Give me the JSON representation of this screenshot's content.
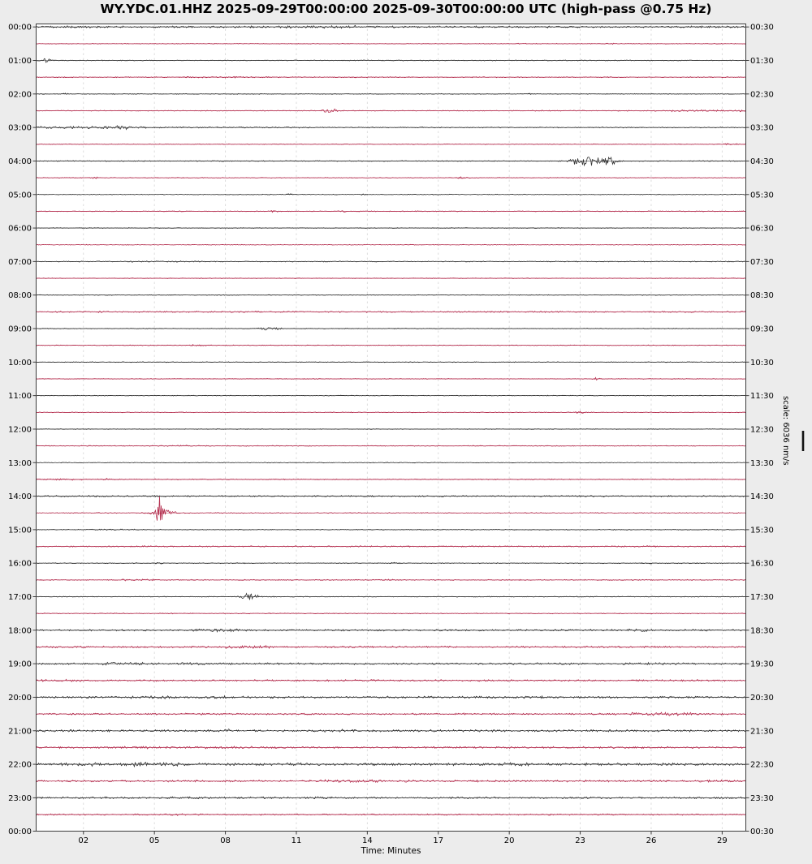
{
  "title": "WY.YDC.01.HHZ 2025-09-29T00:00:00 2025-09-30T00:00:00 UTC (high-pass @0.75 Hz)",
  "xlabel": "Time: Minutes",
  "scale_label": "scale: 6036 nm/s",
  "axis_bottom_left_label": "00:00",
  "axis_bottom_right_label": "00:30",
  "colors": {
    "trace_black": "#2a2a2a",
    "trace_red": "#b12648",
    "grid": "#d9d9d9",
    "frame": "#3c3c3c",
    "figure_bg": "#ececec",
    "plot_bg": "#ffffff",
    "label": "#000000"
  },
  "chart_data": {
    "type": "line",
    "subtype": "helicorder-dayplot",
    "station": "WY.YDC.01.HHZ",
    "start": "2025-09-29T00:00:00",
    "end": "2025-09-30T00:00:00",
    "timezone": "UTC",
    "filter": "high-pass @0.75 Hz",
    "scale": "6036 nm/s",
    "row_interval_minutes": 30,
    "xlabel": "Time: Minutes",
    "x_ticks_minutes": [
      2,
      5,
      8,
      11,
      14,
      17,
      20,
      23,
      26,
      29
    ],
    "x_tick_labels": [
      "02",
      "05",
      "08",
      "11",
      "14",
      "17",
      "20",
      "23",
      "26",
      "29"
    ],
    "xlim_minutes": [
      0,
      30
    ],
    "grid": "vertical-dashed",
    "legend": "none",
    "left_time_labels": [
      "00:00",
      "01:00",
      "02:00",
      "03:00",
      "04:00",
      "05:00",
      "06:00",
      "07:00",
      "08:00",
      "09:00",
      "10:00",
      "11:00",
      "12:00",
      "13:00",
      "14:00",
      "15:00",
      "16:00",
      "17:00",
      "18:00",
      "19:00",
      "20:00",
      "21:00",
      "22:00",
      "23:00",
      "00:00"
    ],
    "right_time_labels": [
      "00:30",
      "01:30",
      "02:30",
      "03:30",
      "04:30",
      "05:30",
      "06:30",
      "07:30",
      "08:30",
      "09:30",
      "10:30",
      "11:30",
      "12:30",
      "13:30",
      "14:30",
      "15:30",
      "16:30",
      "17:30",
      "18:30",
      "19:30",
      "20:30",
      "21:30",
      "22:30",
      "23:30",
      "00:30"
    ],
    "rows": [
      {
        "start": "00:00",
        "color": "black",
        "noise": 0.9,
        "seg": [
          [
            10.5,
            13.5,
            1.6
          ]
        ],
        "events": []
      },
      {
        "start": "00:30",
        "color": "red",
        "noise": 0.35,
        "seg": [],
        "events": [
          {
            "m": 20.5,
            "a": 1.0,
            "w": 0.3
          },
          {
            "m": 24.3,
            "a": 1.0,
            "w": 0.3
          }
        ]
      },
      {
        "start": "01:00",
        "color": "black",
        "noise": 0.4,
        "seg": [],
        "events": [
          {
            "m": 0.45,
            "a": 3.0,
            "w": 0.3
          }
        ]
      },
      {
        "start": "01:30",
        "color": "red",
        "noise": 0.45,
        "seg": [
          [
            6,
            10,
            1.5
          ]
        ],
        "events": []
      },
      {
        "start": "02:00",
        "color": "black",
        "noise": 0.35,
        "seg": [],
        "events": [
          {
            "m": 1.2,
            "a": 1.0,
            "w": 0.2
          },
          {
            "m": 20.8,
            "a": 1.2,
            "w": 0.2
          }
        ]
      },
      {
        "start": "02:30",
        "color": "red",
        "noise": 0.4,
        "seg": [
          [
            21,
            26.5,
            1.3
          ],
          [
            26.5,
            30,
            2.2
          ]
        ],
        "events": [
          {
            "m": 12.4,
            "a": 4.0,
            "w": 0.4
          }
        ]
      },
      {
        "start": "03:00",
        "color": "black",
        "noise": 0.5,
        "seg": [
          [
            0,
            4.7,
            2.2
          ],
          [
            4.7,
            12,
            1.4
          ]
        ],
        "events": [
          {
            "m": 3.6,
            "a": 2.0,
            "w": 0.4
          }
        ]
      },
      {
        "start": "03:30",
        "color": "red",
        "noise": 0.35,
        "seg": [],
        "events": [
          {
            "m": 29.4,
            "a": 1.0,
            "w": 0.4
          }
        ]
      },
      {
        "start": "04:00",
        "color": "black",
        "noise": 0.45,
        "seg": [],
        "events": [
          {
            "m": 22.9,
            "a": 5.0,
            "w": 0.5
          },
          {
            "m": 23.6,
            "a": 6.0,
            "w": 0.8
          },
          {
            "m": 24.3,
            "a": 6.0,
            "w": 0.4
          }
        ]
      },
      {
        "start": "04:30",
        "color": "red",
        "noise": 0.35,
        "seg": [],
        "events": [
          {
            "m": 2.5,
            "a": 0.8,
            "w": 0.3
          },
          {
            "m": 18,
            "a": 1.2,
            "w": 0.4
          }
        ]
      },
      {
        "start": "05:00",
        "color": "black",
        "noise": 0.35,
        "seg": [],
        "events": [
          {
            "m": 10.7,
            "a": 1.0,
            "w": 0.2
          },
          {
            "m": 13.8,
            "a": 1.0,
            "w": 0.2
          }
        ]
      },
      {
        "start": "05:30",
        "color": "red",
        "noise": 0.4,
        "seg": [],
        "events": [
          {
            "m": 10,
            "a": 1.5,
            "w": 0.3
          },
          {
            "m": 13,
            "a": 1.0,
            "w": 0.2
          }
        ]
      },
      {
        "start": "06:00",
        "color": "black",
        "noise": 0.35,
        "seg": [],
        "events": []
      },
      {
        "start": "06:30",
        "color": "red",
        "noise": 0.35,
        "seg": [],
        "events": []
      },
      {
        "start": "07:00",
        "color": "black",
        "noise": 0.45,
        "seg": [
          [
            4,
            7,
            1.5
          ]
        ],
        "events": []
      },
      {
        "start": "07:30",
        "color": "red",
        "noise": 0.35,
        "seg": [],
        "events": []
      },
      {
        "start": "08:00",
        "color": "black",
        "noise": 0.35,
        "seg": [],
        "events": []
      },
      {
        "start": "08:30",
        "color": "red",
        "noise": 0.55,
        "seg": [
          [
            0,
            30,
            1.2
          ]
        ],
        "events": []
      },
      {
        "start": "09:00",
        "color": "black",
        "noise": 0.35,
        "seg": [],
        "events": [
          {
            "m": 9.7,
            "a": 2.2,
            "w": 0.5
          },
          {
            "m": 10.2,
            "a": 1.5,
            "w": 0.3
          }
        ]
      },
      {
        "start": "09:30",
        "color": "red",
        "noise": 0.4,
        "seg": [],
        "events": [
          {
            "m": 6.8,
            "a": 1.0,
            "w": 0.5
          }
        ]
      },
      {
        "start": "10:00",
        "color": "black",
        "noise": 0.35,
        "seg": [],
        "events": []
      },
      {
        "start": "10:30",
        "color": "red",
        "noise": 0.35,
        "seg": [],
        "events": [
          {
            "m": 23.7,
            "a": 1.5,
            "w": 0.3
          }
        ]
      },
      {
        "start": "11:00",
        "color": "black",
        "noise": 0.35,
        "seg": [],
        "events": []
      },
      {
        "start": "11:30",
        "color": "red",
        "noise": 0.35,
        "seg": [],
        "events": [
          {
            "m": 23,
            "a": 1.2,
            "w": 0.3
          }
        ]
      },
      {
        "start": "12:00",
        "color": "black",
        "noise": 0.35,
        "seg": [],
        "events": []
      },
      {
        "start": "12:30",
        "color": "red",
        "noise": 0.4,
        "seg": [
          [
            4.8,
            7.2,
            1.8
          ]
        ],
        "events": []
      },
      {
        "start": "13:00",
        "color": "black",
        "noise": 0.35,
        "seg": [],
        "events": []
      },
      {
        "start": "13:30",
        "color": "red",
        "noise": 0.45,
        "seg": [
          [
            0,
            2,
            1.8
          ]
        ],
        "events": [
          {
            "m": 3,
            "a": 1.5,
            "w": 0.2
          }
        ]
      },
      {
        "start": "14:00",
        "color": "black",
        "noise": 0.7,
        "seg": [],
        "events": []
      },
      {
        "start": "14:30",
        "color": "red",
        "noise": 0.4,
        "seg": [],
        "events": [
          {
            "m": 5.25,
            "a": 20.0,
            "w": 0.22
          },
          {
            "m": 5.4,
            "a": 4.0,
            "w": 0.8
          }
        ]
      },
      {
        "start": "15:00",
        "color": "black",
        "noise": 0.4,
        "seg": [
          [
            2,
            4.2,
            1.6
          ]
        ],
        "events": []
      },
      {
        "start": "15:30",
        "color": "red",
        "noise": 0.6,
        "seg": [],
        "events": []
      },
      {
        "start": "16:00",
        "color": "black",
        "noise": 0.4,
        "seg": [
          [
            25.5,
            28,
            1.5
          ]
        ],
        "events": [
          {
            "m": 5.2,
            "a": 1.0,
            "w": 0.3
          },
          {
            "m": 15.1,
            "a": 1.0,
            "w": 0.3
          }
        ]
      },
      {
        "start": "16:30",
        "color": "red",
        "noise": 0.45,
        "seg": [
          [
            3.5,
            5,
            1.8
          ]
        ],
        "events": [
          {
            "m": 15,
            "a": 1.2,
            "w": 0.3
          }
        ]
      },
      {
        "start": "17:00",
        "color": "black",
        "noise": 0.4,
        "seg": [],
        "events": [
          {
            "m": 8.95,
            "a": 4.5,
            "w": 0.35
          },
          {
            "m": 9.1,
            "a": 2.0,
            "w": 0.7
          }
        ]
      },
      {
        "start": "17:30",
        "color": "red",
        "noise": 0.4,
        "seg": [],
        "events": []
      },
      {
        "start": "18:00",
        "color": "black",
        "noise": 0.8,
        "seg": [
          [
            6.5,
            8.5,
            1.8
          ],
          [
            25,
            26,
            1.5
          ]
        ],
        "events": []
      },
      {
        "start": "18:30",
        "color": "red",
        "noise": 0.8,
        "seg": [
          [
            8,
            10,
            1.9
          ]
        ],
        "events": []
      },
      {
        "start": "19:00",
        "color": "black",
        "noise": 0.9,
        "seg": [
          [
            2.5,
            4.5,
            1.5
          ],
          [
            5.5,
            7,
            1.4
          ],
          [
            25.5,
            27,
            1.4
          ]
        ],
        "events": []
      },
      {
        "start": "19:30",
        "color": "red",
        "noise": 0.8,
        "seg": [
          [
            0,
            2,
            1.4
          ],
          [
            13,
            14.5,
            1.3
          ]
        ],
        "events": []
      },
      {
        "start": "20:00",
        "color": "black",
        "noise": 1.0,
        "seg": [
          [
            4,
            6,
            1.4
          ],
          [
            7,
            8,
            1.3
          ],
          [
            20.5,
            22,
            1.3
          ]
        ],
        "events": []
      },
      {
        "start": "20:30",
        "color": "red",
        "noise": 0.8,
        "seg": [
          [
            1.5,
            2.5,
            1.4
          ],
          [
            25,
            28,
            1.9
          ]
        ],
        "events": []
      },
      {
        "start": "21:00",
        "color": "black",
        "noise": 1.0,
        "seg": [
          [
            12,
            13.5,
            1.4
          ]
        ],
        "events": [
          {
            "m": 8.1,
            "a": 2.5,
            "w": 0.2
          }
        ]
      },
      {
        "start": "21:30",
        "color": "red",
        "noise": 0.9,
        "seg": [
          [
            3.5,
            5,
            1.4
          ],
          [
            7,
            10,
            1.3
          ]
        ],
        "events": []
      },
      {
        "start": "22:00",
        "color": "black",
        "noise": 1.2,
        "seg": [
          [
            1,
            3.5,
            1.4
          ],
          [
            3.5,
            6.5,
            1.9
          ],
          [
            19,
            21,
            1.4
          ]
        ],
        "events": []
      },
      {
        "start": "22:30",
        "color": "red",
        "noise": 0.9,
        "seg": [
          [
            12,
            16,
            1.4
          ],
          [
            28,
            29,
            1.3
          ]
        ],
        "events": []
      },
      {
        "start": "23:00",
        "color": "black",
        "noise": 0.9,
        "seg": [
          [
            5.5,
            7.5,
            1.4
          ],
          [
            11.5,
            12.5,
            1.3
          ]
        ],
        "events": []
      },
      {
        "start": "23:30",
        "color": "red",
        "noise": 0.7,
        "seg": [
          [
            5,
            7,
            1.3
          ]
        ],
        "events": []
      }
    ]
  }
}
